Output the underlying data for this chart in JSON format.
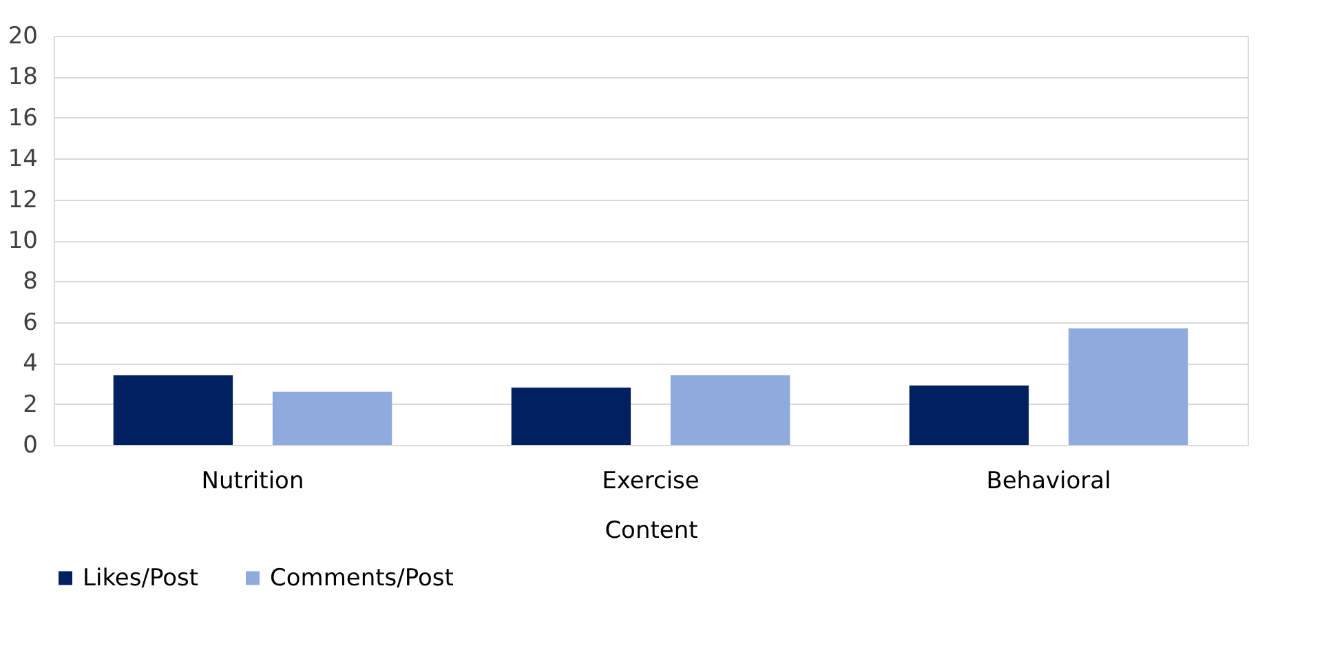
{
  "chart_data": {
    "type": "bar",
    "xlabel": "Content",
    "categories": [
      "Nutrition",
      "Exercise",
      "Behavioral"
    ],
    "series": [
      {
        "name": "Likes/Post",
        "color": "#002060",
        "values": [
          3.4,
          2.8,
          2.9
        ]
      },
      {
        "name": "Comments/Post",
        "color": "#8faadc",
        "values": [
          2.6,
          3.4,
          5.7
        ]
      }
    ],
    "ylim": [
      0,
      20
    ],
    "yticks": [
      0,
      2,
      4,
      6,
      8,
      10,
      12,
      14,
      16,
      18,
      20
    ],
    "grid": "y",
    "legend": "bottom"
  }
}
